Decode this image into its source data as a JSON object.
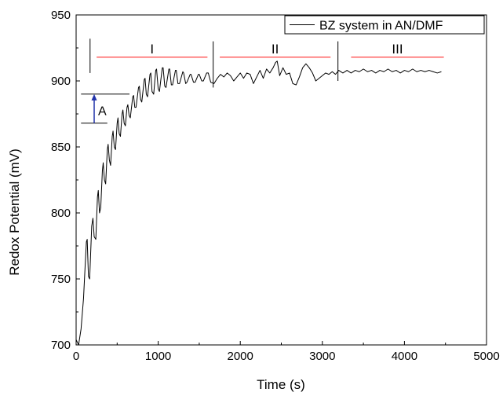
{
  "chart_data": {
    "type": "line",
    "xlabel": "Time (s)",
    "ylabel": "Redox Potential (mV)",
    "xlim": [
      0,
      5000
    ],
    "ylim": [
      700,
      950
    ],
    "x_ticks": [
      0,
      1000,
      2000,
      3000,
      4000,
      5000
    ],
    "y_ticks": [
      700,
      750,
      800,
      850,
      900,
      950
    ],
    "legend": {
      "position": "top-right",
      "entries": [
        "BZ system in AN/DMF"
      ]
    },
    "series": [
      {
        "name": "BZ system in AN/DMF",
        "color": "#000000",
        "points": [
          [
            0,
            704
          ],
          [
            30,
            700
          ],
          [
            60,
            712
          ],
          [
            90,
            735
          ],
          [
            110,
            760
          ],
          [
            125,
            778
          ],
          [
            135,
            780
          ],
          [
            150,
            752
          ],
          [
            165,
            750
          ],
          [
            190,
            790
          ],
          [
            205,
            796
          ],
          [
            220,
            782
          ],
          [
            240,
            780
          ],
          [
            260,
            812
          ],
          [
            270,
            817
          ],
          [
            285,
            800
          ],
          [
            300,
            804
          ],
          [
            320,
            832
          ],
          [
            330,
            838
          ],
          [
            345,
            825
          ],
          [
            360,
            822
          ],
          [
            380,
            848
          ],
          [
            390,
            852
          ],
          [
            405,
            840
          ],
          [
            420,
            836
          ],
          [
            440,
            858
          ],
          [
            450,
            862
          ],
          [
            465,
            850
          ],
          [
            480,
            848
          ],
          [
            500,
            868
          ],
          [
            510,
            872
          ],
          [
            525,
            860
          ],
          [
            540,
            858
          ],
          [
            560,
            875
          ],
          [
            570,
            878
          ],
          [
            585,
            868
          ],
          [
            600,
            866
          ],
          [
            620,
            880
          ],
          [
            630,
            882
          ],
          [
            645,
            874
          ],
          [
            660,
            872
          ],
          [
            690,
            888
          ],
          [
            700,
            889
          ],
          [
            715,
            880
          ],
          [
            730,
            880
          ],
          [
            760,
            895
          ],
          [
            770,
            896
          ],
          [
            785,
            886
          ],
          [
            800,
            884
          ],
          [
            830,
            901
          ],
          [
            840,
            902
          ],
          [
            855,
            890
          ],
          [
            870,
            888
          ],
          [
            900,
            905
          ],
          [
            910,
            906
          ],
          [
            925,
            892
          ],
          [
            945,
            890
          ],
          [
            970,
            908
          ],
          [
            980,
            909
          ],
          [
            1000,
            894
          ],
          [
            1015,
            892
          ],
          [
            1050,
            910
          ],
          [
            1060,
            910
          ],
          [
            1080,
            896
          ],
          [
            1095,
            895
          ],
          [
            1130,
            909
          ],
          [
            1140,
            909
          ],
          [
            1160,
            897
          ],
          [
            1175,
            897
          ],
          [
            1210,
            908
          ],
          [
            1220,
            908
          ],
          [
            1240,
            898
          ],
          [
            1260,
            898
          ],
          [
            1300,
            907
          ],
          [
            1310,
            906
          ],
          [
            1335,
            898
          ],
          [
            1350,
            899
          ],
          [
            1390,
            905
          ],
          [
            1400,
            905
          ],
          [
            1430,
            899
          ],
          [
            1450,
            899
          ],
          [
            1490,
            905
          ],
          [
            1500,
            905
          ],
          [
            1530,
            900
          ],
          [
            1550,
            900
          ],
          [
            1590,
            906
          ],
          [
            1610,
            906
          ],
          [
            1640,
            899
          ],
          [
            1680,
            898
          ],
          [
            1720,
            902
          ],
          [
            1760,
            905
          ],
          [
            1800,
            903
          ],
          [
            1840,
            906
          ],
          [
            1880,
            904
          ],
          [
            1920,
            900
          ],
          [
            1960,
            903
          ],
          [
            2000,
            906
          ],
          [
            2040,
            902
          ],
          [
            2080,
            906
          ],
          [
            2120,
            905
          ],
          [
            2160,
            898
          ],
          [
            2200,
            903
          ],
          [
            2240,
            908
          ],
          [
            2280,
            902
          ],
          [
            2320,
            909
          ],
          [
            2360,
            906
          ],
          [
            2400,
            910
          ],
          [
            2430,
            914
          ],
          [
            2450,
            915
          ],
          [
            2480,
            904
          ],
          [
            2520,
            910
          ],
          [
            2560,
            905
          ],
          [
            2600,
            906
          ],
          [
            2640,
            898
          ],
          [
            2680,
            897
          ],
          [
            2720,
            903
          ],
          [
            2760,
            910
          ],
          [
            2800,
            913
          ],
          [
            2840,
            910
          ],
          [
            2880,
            906
          ],
          [
            2920,
            900
          ],
          [
            2960,
            902
          ],
          [
            3000,
            904
          ],
          [
            3040,
            906
          ],
          [
            3080,
            905
          ],
          [
            3120,
            907
          ],
          [
            3160,
            905
          ],
          [
            3200,
            908
          ],
          [
            3250,
            906
          ],
          [
            3300,
            908
          ],
          [
            3350,
            906
          ],
          [
            3400,
            908
          ],
          [
            3450,
            907
          ],
          [
            3500,
            909
          ],
          [
            3550,
            907
          ],
          [
            3600,
            908
          ],
          [
            3650,
            906
          ],
          [
            3700,
            908
          ],
          [
            3750,
            907
          ],
          [
            3800,
            909
          ],
          [
            3850,
            907
          ],
          [
            3900,
            908
          ],
          [
            3950,
            906
          ],
          [
            4000,
            908
          ],
          [
            4050,
            907
          ],
          [
            4100,
            909
          ],
          [
            4150,
            907
          ],
          [
            4200,
            908
          ],
          [
            4250,
            907
          ],
          [
            4300,
            908
          ],
          [
            4350,
            907
          ],
          [
            4400,
            906
          ],
          [
            4450,
            907
          ]
        ]
      }
    ],
    "regions": [
      {
        "label": "I",
        "x_start": 250,
        "x_end": 1600
      },
      {
        "label": "II",
        "x_start": 1750,
        "x_end": 3100
      },
      {
        "label": "III",
        "x_start": 3350,
        "x_end": 4480
      }
    ],
    "region_line_y": 918,
    "region_line_color": "#ff4040",
    "region_dividers": [
      {
        "x": 170,
        "y_start": 906,
        "y_end": 932
      },
      {
        "x": 1670,
        "y_start": 895,
        "y_end": 930
      },
      {
        "x": 3190,
        "y_start": 900,
        "y_end": 930
      }
    ],
    "amplitude_annotation": {
      "label": "A",
      "x": 220,
      "y_low": 868,
      "y_high": 890,
      "line_x_start": 60,
      "line_x_end": 650,
      "arrow_color": "#2233aa"
    },
    "grid": false
  }
}
